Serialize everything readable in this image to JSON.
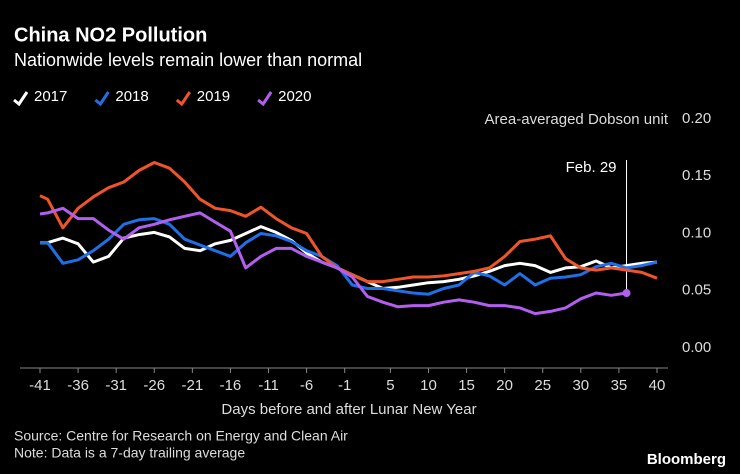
{
  "chart_data": {
    "type": "line",
    "title": "China NO2 Pollution",
    "subtitle": "Nationwide levels remain lower than normal",
    "xlabel": "Days before and after Lunar New Year",
    "ylabel": "Area-averaged Dobson unit",
    "source": "Source: Centre for Research on Energy and Clean Air",
    "note": "Note: Data is a 7-day trailing average",
    "credit": "Bloomberg",
    "annotation": {
      "text": "Feb. 29",
      "x": 36
    },
    "x": [
      -41,
      -40,
      -38,
      -36,
      -34,
      -32,
      -30,
      -28,
      -26,
      -24,
      -22,
      -20,
      -18,
      -16,
      -14,
      -12,
      -10,
      -8,
      -6,
      -4,
      -2,
      0,
      2,
      4,
      6,
      8,
      10,
      12,
      14,
      16,
      18,
      20,
      22,
      24,
      26,
      28,
      30,
      32,
      34,
      36,
      38,
      40
    ],
    "series": [
      {
        "name": "2017",
        "color": "#ffffff",
        "values": [
          0.092,
          0.092,
          0.096,
          0.091,
          0.075,
          0.08,
          0.096,
          0.099,
          0.101,
          0.097,
          0.087,
          0.085,
          0.091,
          0.094,
          0.1,
          0.106,
          0.101,
          0.094,
          0.083,
          0.075,
          0.07,
          0.064,
          0.058,
          0.052,
          0.053,
          0.055,
          0.057,
          0.058,
          0.06,
          0.063,
          0.067,
          0.072,
          0.074,
          0.072,
          0.066,
          0.07,
          0.071,
          0.076,
          0.07,
          0.072,
          0.074,
          0.075
        ]
      },
      {
        "name": "2018",
        "color": "#1f6fe6",
        "values": [
          0.092,
          0.092,
          0.074,
          0.077,
          0.085,
          0.095,
          0.108,
          0.112,
          0.113,
          0.108,
          0.095,
          0.09,
          0.085,
          0.08,
          0.092,
          0.1,
          0.098,
          0.093,
          0.085,
          0.08,
          0.072,
          0.055,
          0.052,
          0.052,
          0.05,
          0.048,
          0.047,
          0.052,
          0.055,
          0.066,
          0.063,
          0.055,
          0.065,
          0.055,
          0.061,
          0.062,
          0.064,
          0.071,
          0.074,
          0.07,
          0.072,
          0.075
        ]
      },
      {
        "name": "2019",
        "color": "#f0552a",
        "values": [
          0.133,
          0.13,
          0.105,
          0.122,
          0.132,
          0.14,
          0.145,
          0.155,
          0.162,
          0.157,
          0.145,
          0.13,
          0.122,
          0.12,
          0.115,
          0.123,
          0.113,
          0.105,
          0.1,
          0.08,
          0.07,
          0.064,
          0.058,
          0.058,
          0.06,
          0.062,
          0.062,
          0.063,
          0.065,
          0.067,
          0.07,
          0.08,
          0.093,
          0.095,
          0.098,
          0.078,
          0.07,
          0.068,
          0.07,
          0.068,
          0.066,
          0.061
        ]
      },
      {
        "name": "2020",
        "color": "#b25ff0",
        "values": [
          0.117,
          0.118,
          0.122,
          0.113,
          0.113,
          0.103,
          0.095,
          0.105,
          0.108,
          0.112,
          0.115,
          0.118,
          0.11,
          0.102,
          0.07,
          0.08,
          0.087,
          0.087,
          0.08,
          0.075,
          0.07,
          0.062,
          0.045,
          0.04,
          0.036,
          0.037,
          0.037,
          0.04,
          0.042,
          0.04,
          0.037,
          0.037,
          0.035,
          0.03,
          0.032,
          0.035,
          0.043,
          0.048,
          0.046,
          0.048,
          null,
          null
        ]
      }
    ],
    "xlim": [
      -41,
      40
    ],
    "xticks": [
      -41,
      -36,
      -31,
      -26,
      -21,
      -16,
      -11,
      -6,
      -1,
      5,
      10,
      15,
      20,
      25,
      30,
      35,
      40
    ],
    "ylim": [
      0,
      0.2
    ],
    "yticks": [
      {
        "value": 0,
        "label": "0.00"
      },
      {
        "value": 0.05,
        "label": "0.05"
      },
      {
        "value": 0.1,
        "label": "0.10"
      },
      {
        "value": 0.15,
        "label": "0.15"
      },
      {
        "value": 0.2,
        "label": "0.20"
      }
    ],
    "grid": false
  }
}
